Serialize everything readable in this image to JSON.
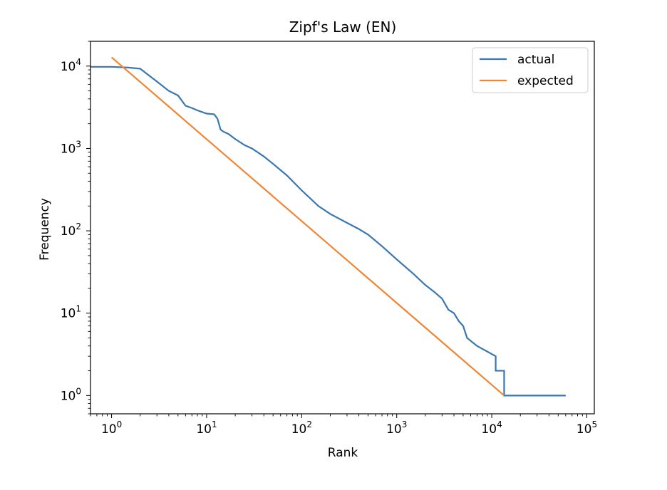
{
  "chart_data": {
    "type": "line",
    "title": "Zipf's Law (EN)",
    "xlabel": "Rank",
    "ylabel": "Frequency",
    "xscale": "log",
    "yscale": "log",
    "xlim": [
      0.6,
      120000
    ],
    "ylim": [
      0.6,
      20000
    ],
    "xticks": [
      {
        "value": 1,
        "base": "10",
        "exp": "0"
      },
      {
        "value": 10,
        "base": "10",
        "exp": "1"
      },
      {
        "value": 100,
        "base": "10",
        "exp": "2"
      },
      {
        "value": 1000,
        "base": "10",
        "exp": "3"
      },
      {
        "value": 10000,
        "base": "10",
        "exp": "4"
      },
      {
        "value": 100000,
        "base": "10",
        "exp": "5"
      }
    ],
    "yticks": [
      {
        "value": 1,
        "base": "10",
        "exp": "0"
      },
      {
        "value": 10,
        "base": "10",
        "exp": "1"
      },
      {
        "value": 100,
        "base": "10",
        "exp": "2"
      },
      {
        "value": 1000,
        "base": "10",
        "exp": "3"
      },
      {
        "value": 10000,
        "base": "10",
        "exp": "4"
      }
    ],
    "legend_position": "top-right",
    "grid": false,
    "series": [
      {
        "name": "actual",
        "color": "#3a76af",
        "x": [
          0.6,
          1,
          1.5,
          2,
          3,
          4,
          5,
          6,
          7,
          8,
          10,
          12,
          13,
          14,
          15,
          17,
          20,
          25,
          30,
          40,
          50,
          70,
          100,
          150,
          200,
          300,
          400,
          500,
          700,
          1000,
          1500,
          2000,
          2500,
          3000,
          3500,
          4000,
          4500,
          5000,
          5500,
          7000,
          11000,
          11001,
          13500,
          13501,
          60000
        ],
        "y": [
          9800,
          9800,
          9600,
          9300,
          6500,
          5000,
          4400,
          3300,
          3100,
          2900,
          2650,
          2600,
          2300,
          1700,
          1600,
          1500,
          1300,
          1100,
          1000,
          800,
          650,
          470,
          310,
          200,
          160,
          125,
          105,
          90,
          65,
          45,
          30,
          22,
          18,
          15,
          11,
          10,
          8,
          7,
          5,
          4,
          3,
          2,
          2,
          1,
          1
        ]
      },
      {
        "name": "expected",
        "color": "#ef8636",
        "x": [
          1,
          13500
        ],
        "y": [
          12800,
          1
        ]
      }
    ]
  }
}
